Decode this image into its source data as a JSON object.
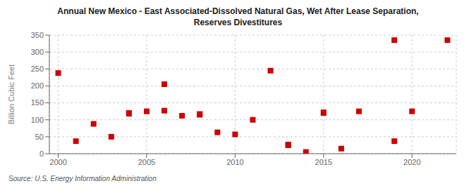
{
  "chart_data": {
    "type": "scatter",
    "title": "Annual New Mexico - East Associated-Dissolved Natural Gas, Wet After Lease Separation,\nReserves Divestitures",
    "ylabel": "Billion Cubic Feet",
    "source": "Source: U.S. Energy Information Administration",
    "x": [
      2000,
      2001,
      2002,
      2003,
      2004,
      2004,
      2005,
      2006,
      2006,
      2007,
      2008,
      2008,
      2009,
      2010,
      2011,
      2012,
      2013,
      2013,
      2014,
      2015,
      2015,
      2016,
      2017,
      2019,
      2019,
      2020,
      2022
    ],
    "values": [
      238,
      37,
      88,
      50,
      120,
      118,
      125,
      205,
      127,
      112,
      115,
      117,
      63,
      57,
      100,
      245,
      25,
      27,
      5,
      120,
      122,
      15,
      125,
      335,
      37,
      125,
      335
    ],
    "color": "#cc0000",
    "marker": "square",
    "xlim": [
      1999.5,
      2022.5
    ],
    "xticks": [
      2000,
      2005,
      2010,
      2015,
      2020
    ],
    "ylim": [
      0,
      350
    ],
    "yticks": [
      0,
      50,
      100,
      150,
      200,
      250,
      300,
      350
    ],
    "grid": true
  }
}
